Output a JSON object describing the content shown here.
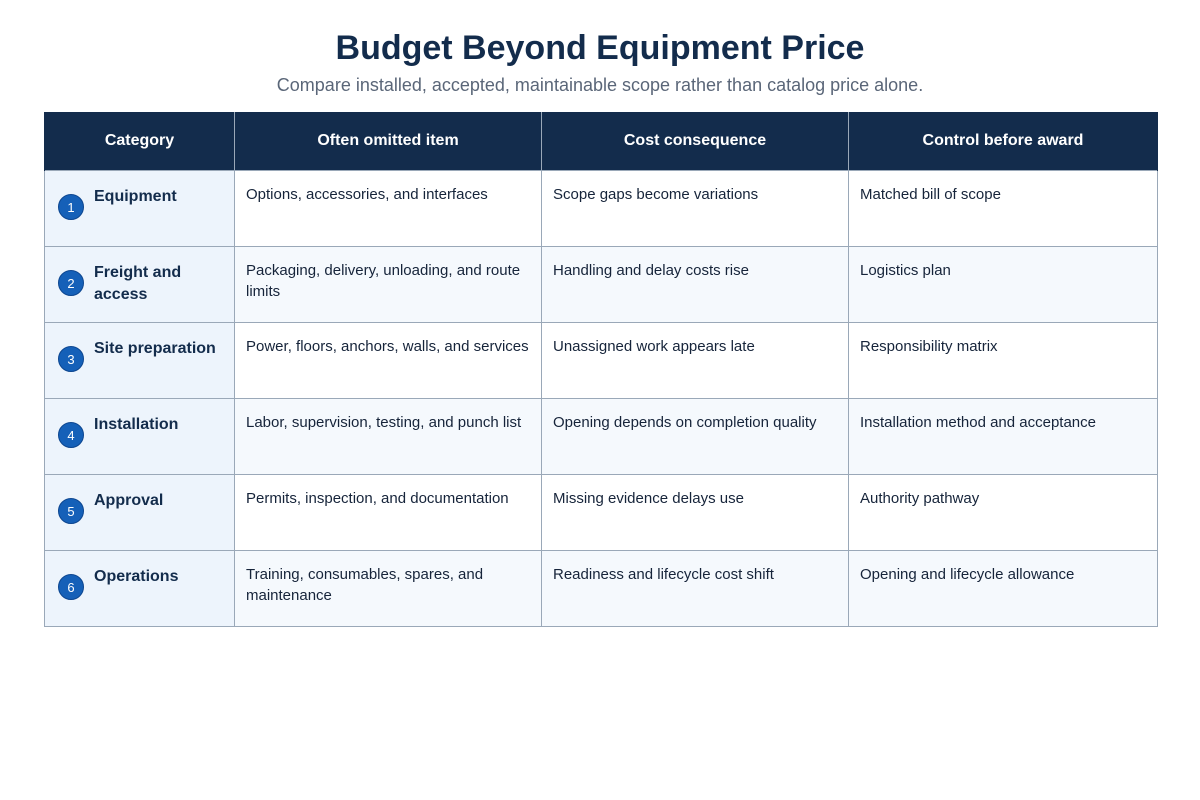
{
  "header": {
    "title": "Budget Beyond Equipment Price",
    "subtitle": "Compare installed, accepted, maintainable scope rather than catalog price alone."
  },
  "table": {
    "columns": [
      "Category",
      "Often omitted item",
      "Cost consequence",
      "Control before award"
    ],
    "rows": [
      {
        "number": "1",
        "category": "Equipment",
        "omitted": "Options, accessories, and interfaces",
        "consequence": "Scope gaps become variations",
        "control": "Matched bill of scope"
      },
      {
        "number": "2",
        "category": "Freight and access",
        "omitted": "Packaging, delivery, unloading, and route limits",
        "consequence": "Handling and delay costs rise",
        "control": "Logistics plan"
      },
      {
        "number": "3",
        "category": "Site preparation",
        "omitted": "Power, floors, anchors, walls, and services",
        "consequence": "Unassigned work appears late",
        "control": "Responsibility matrix"
      },
      {
        "number": "4",
        "category": "Installation",
        "omitted": "Labor, supervision, testing, and punch list",
        "consequence": "Opening depends on completion quality",
        "control": "Installation method and acceptance"
      },
      {
        "number": "5",
        "category": "Approval",
        "omitted": "Permits, inspection, and documentation",
        "consequence": "Missing evidence delays use",
        "control": "Authority pathway"
      },
      {
        "number": "6",
        "category": "Operations",
        "omitted": "Training, consumables, spares, and maintenance",
        "consequence": "Readiness and lifecycle cost shift",
        "control": "Opening and lifecycle allowance"
      }
    ]
  },
  "colors": {
    "header_bg": "#132c4c",
    "badge": "#1560b8",
    "category_bg": "#edf4fc",
    "row_alt_bg": "#f5f9fd",
    "border": "#9aa8b8"
  }
}
